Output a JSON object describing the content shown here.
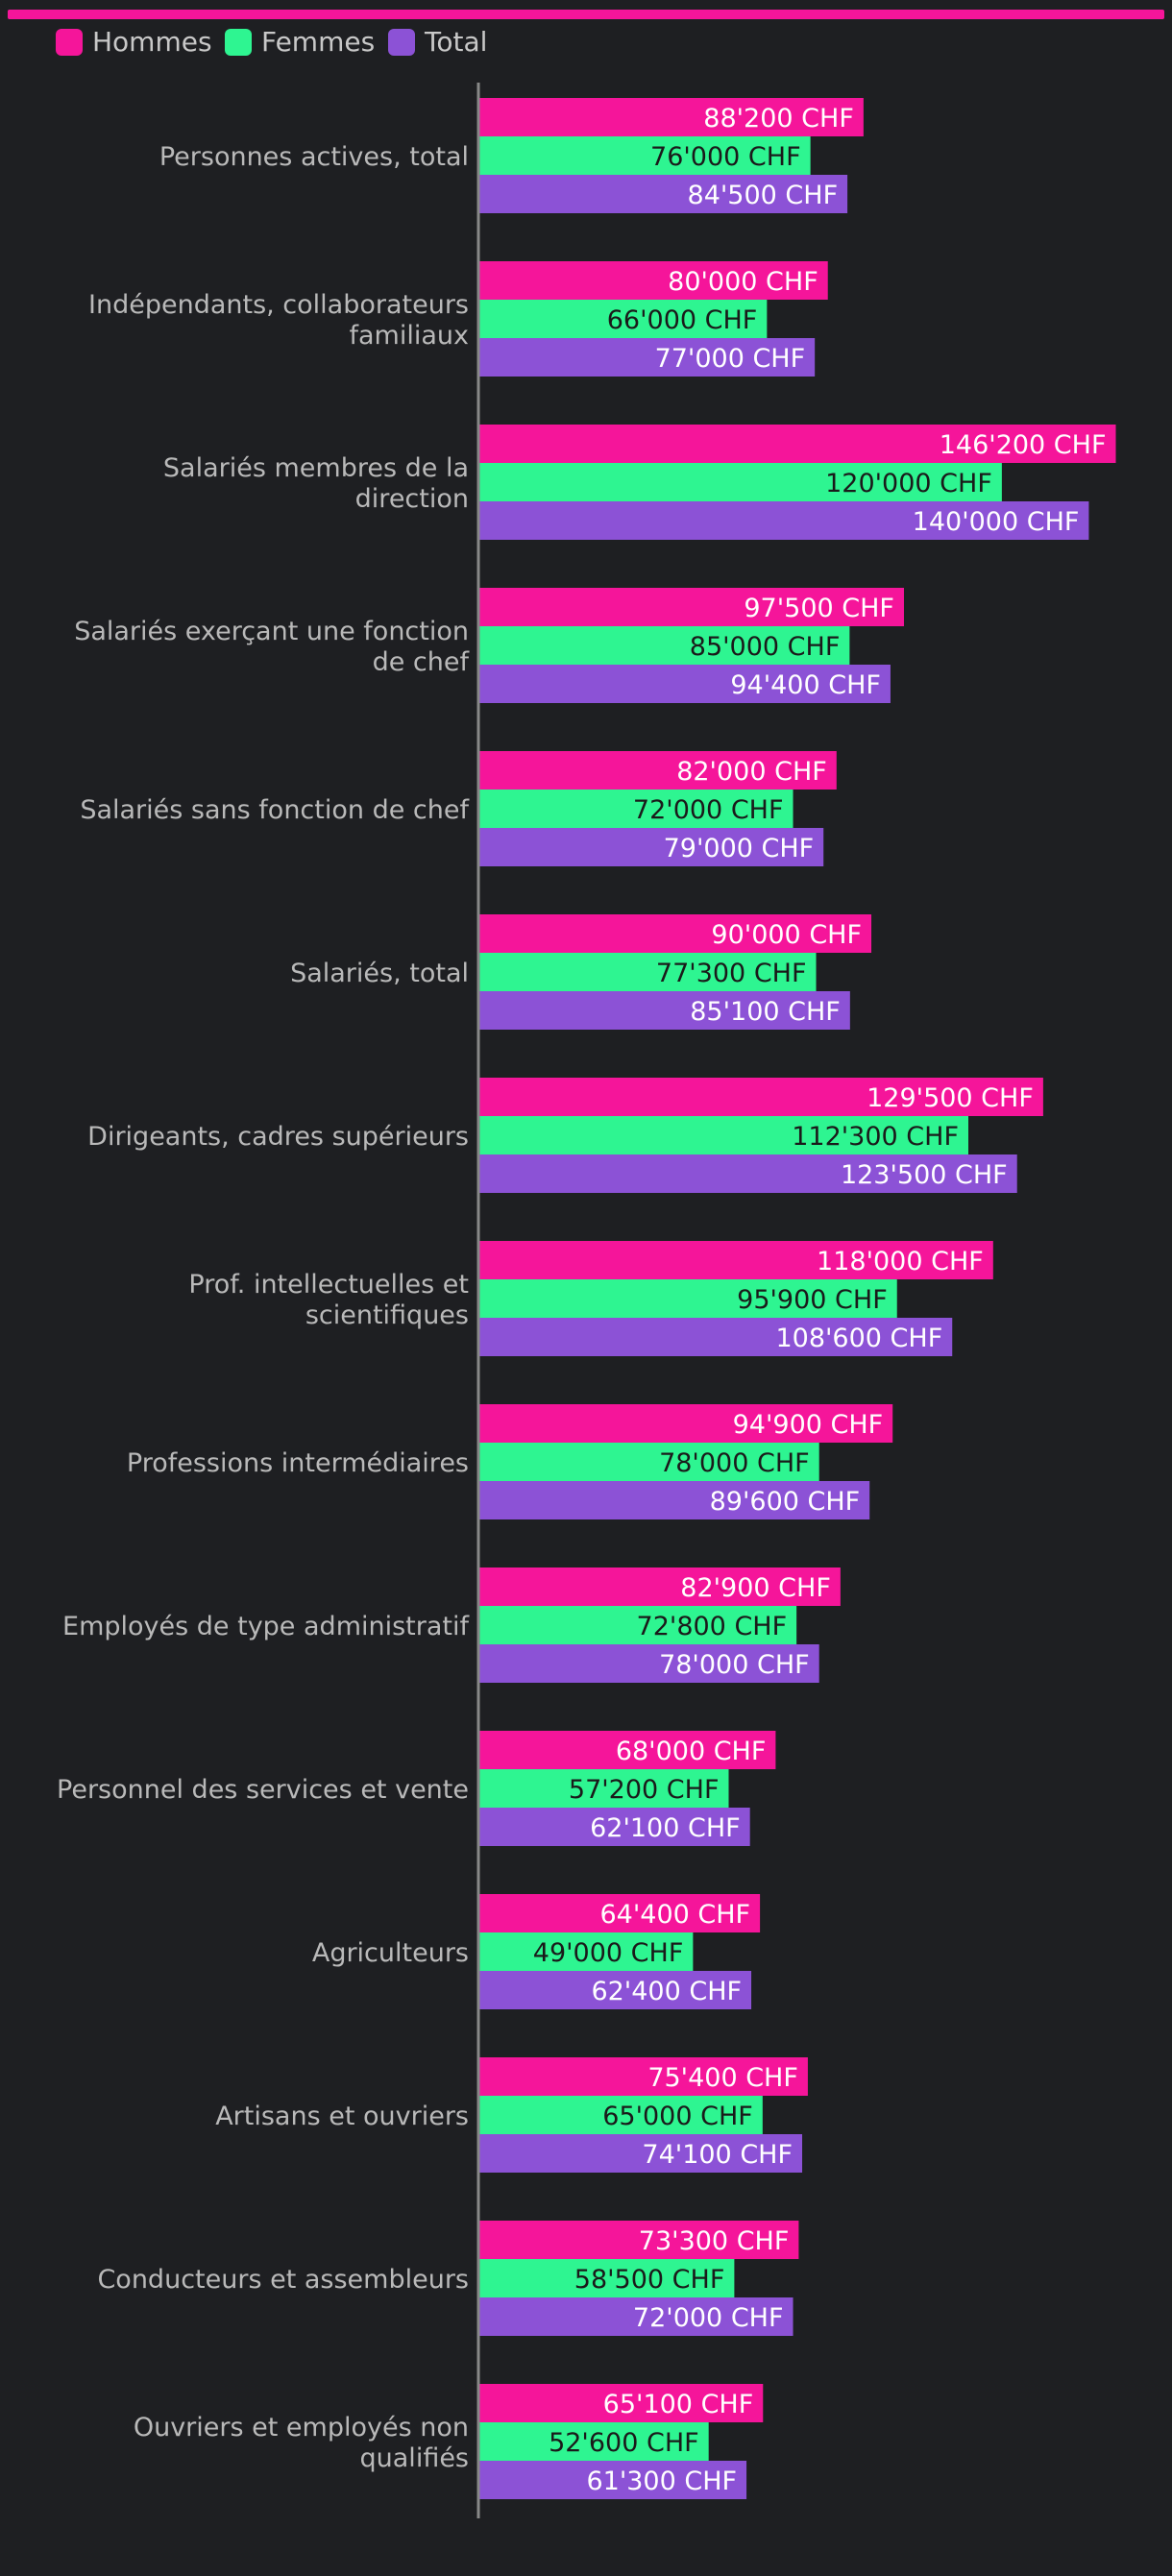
{
  "chart_data": {
    "type": "bar",
    "orientation": "horizontal",
    "title": "",
    "xlabel": "",
    "ylabel": "",
    "unit_suffix": " CHF",
    "xlim": [
      0,
      150000
    ],
    "grid": false,
    "legend_position": "top-left",
    "categories": [
      [
        "Personnes actives, total"
      ],
      [
        "Indépendants, collaborateurs",
        "familiaux"
      ],
      [
        "Salariés membres de la",
        "direction"
      ],
      [
        "Salariés exerçant une fonction",
        "de chef"
      ],
      [
        "Salariés sans fonction de chef"
      ],
      [
        "Salariés, total"
      ],
      [
        "Dirigeants, cadres supérieurs"
      ],
      [
        "Prof. intellectuelles et",
        "scientifiques"
      ],
      [
        "Professions intermédiaires"
      ],
      [
        "Employés de type administratif"
      ],
      [
        "Personnel des services et vente"
      ],
      [
        "Agriculteurs"
      ],
      [
        "Artisans et ouvriers"
      ],
      [
        "Conducteurs et assembleurs"
      ],
      [
        "Ouvriers et employés non",
        "qualifiés"
      ]
    ],
    "series": [
      {
        "name": "Hommes",
        "color": "#f5159a",
        "label_color": "#ffffff",
        "values": [
          88200,
          80000,
          146200,
          97500,
          82000,
          90000,
          129500,
          118000,
          94900,
          82900,
          68000,
          64400,
          75400,
          73300,
          65100
        ],
        "labels": [
          "88'200 CHF",
          "80'000 CHF",
          "146'200 CHF",
          "97'500 CHF",
          "82'000 CHF",
          "90'000 CHF",
          "129'500 CHF",
          "118'000 CHF",
          "94'900 CHF",
          "82'900 CHF",
          "68'000 CHF",
          "64'400 CHF",
          "75'400 CHF",
          "73'300 CHF",
          "65'100 CHF"
        ]
      },
      {
        "name": "Femmes",
        "color": "#2ef591",
        "label_color": "#1a1a1a",
        "values": [
          76000,
          66000,
          120000,
          85000,
          72000,
          77300,
          112300,
          95900,
          78000,
          72800,
          57200,
          49000,
          65000,
          58500,
          52600
        ],
        "labels": [
          "76'000 CHF",
          "66'000 CHF",
          "120'000 CHF",
          "85'000 CHF",
          "72'000 CHF",
          "77'300 CHF",
          "112'300 CHF",
          "95'900 CHF",
          "78'000 CHF",
          "72'800 CHF",
          "57'200 CHF",
          "49'000 CHF",
          "65'000 CHF",
          "58'500 CHF",
          "52'600 CHF"
        ]
      },
      {
        "name": "Total",
        "color": "#8c52d6",
        "label_color": "#ffffff",
        "values": [
          84500,
          77000,
          140000,
          94400,
          79000,
          85100,
          123500,
          108600,
          89600,
          78000,
          62100,
          62400,
          74100,
          72000,
          61300
        ],
        "labels": [
          "84'500 CHF",
          "77'000 CHF",
          "140'000 CHF",
          "94'400 CHF",
          "79'000 CHF",
          "85'100 CHF",
          "123'500 CHF",
          "108'600 CHF",
          "89'600 CHF",
          "78'000 CHF",
          "62'100 CHF",
          "62'400 CHF",
          "74'100 CHF",
          "72'000 CHF",
          "61'300 CHF"
        ]
      }
    ]
  },
  "colors": {
    "background": "#1e1f22",
    "top_bar": "#f5159a",
    "axis": "#888888"
  }
}
